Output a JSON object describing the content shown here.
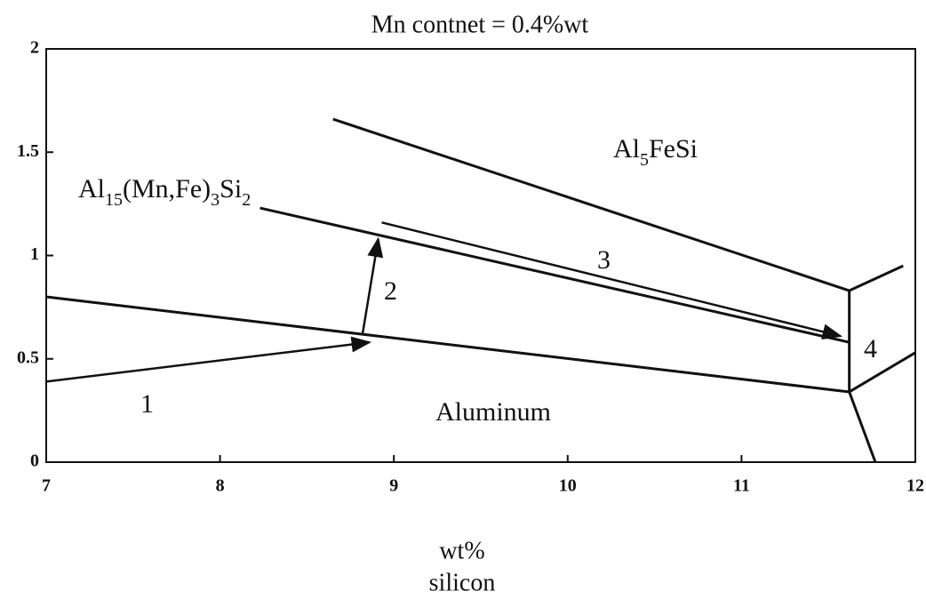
{
  "chart_data": {
    "type": "line",
    "title": "Mn contnet = 0.4%wt",
    "x_label": [
      "wt%",
      "silicon"
    ],
    "xlim": [
      7,
      12
    ],
    "ylim": [
      0,
      2
    ],
    "xticks": [
      7,
      8,
      9,
      10,
      11,
      12
    ],
    "yticks": [
      0,
      0.5,
      1,
      1.5,
      2
    ],
    "color": "#111111",
    "series": [
      {
        "x": [
          8.65,
          11.62
        ],
        "values": [
          1.66,
          0.83
        ]
      },
      {
        "x": [
          8.23,
          11.62
        ],
        "values": [
          1.23,
          0.58
        ]
      },
      {
        "x": [
          7,
          11.62
        ],
        "values": [
          0.8,
          0.34
        ]
      },
      {
        "x": [
          11.62,
          11.62
        ],
        "values": [
          0.83,
          0.34
        ]
      },
      {
        "x": [
          11.62,
          11.93
        ],
        "values": [
          0.83,
          0.95
        ]
      },
      {
        "x": [
          11.62,
          12
        ],
        "values": [
          0.34,
          0.53
        ]
      },
      {
        "x": [
          11.62,
          11.77
        ],
        "values": [
          0.34,
          0
        ]
      },
      {
        "x": [
          7,
          8.86
        ],
        "values": [
          0.39,
          0.58
        ],
        "arrow": true
      },
      {
        "x": [
          8.82,
          8.91
        ],
        "values": [
          0.62,
          1.08
        ],
        "arrow": true
      },
      {
        "x": [
          8.93,
          11.57
        ],
        "values": [
          1.16,
          0.61
        ],
        "arrow": true
      }
    ],
    "annotations": [
      [
        {
          "text": "Al"
        },
        {
          "text": "5",
          "sub": true
        },
        {
          "text": "FeSi"
        }
      ],
      [
        {
          "text": "Al"
        },
        {
          "text": "15",
          "sub": true
        },
        {
          "text": "(Mn,Fe)"
        },
        {
          "text": "3",
          "sub": true
        },
        {
          "text": "Si"
        },
        {
          "text": "2",
          "sub": true
        }
      ],
      [
        {
          "text": "1"
        }
      ],
      [
        {
          "text": "2"
        }
      ],
      [
        {
          "text": "3"
        }
      ],
      [
        {
          "text": "4"
        }
      ],
      [
        {
          "text": "Aluminum"
        }
      ]
    ]
  }
}
